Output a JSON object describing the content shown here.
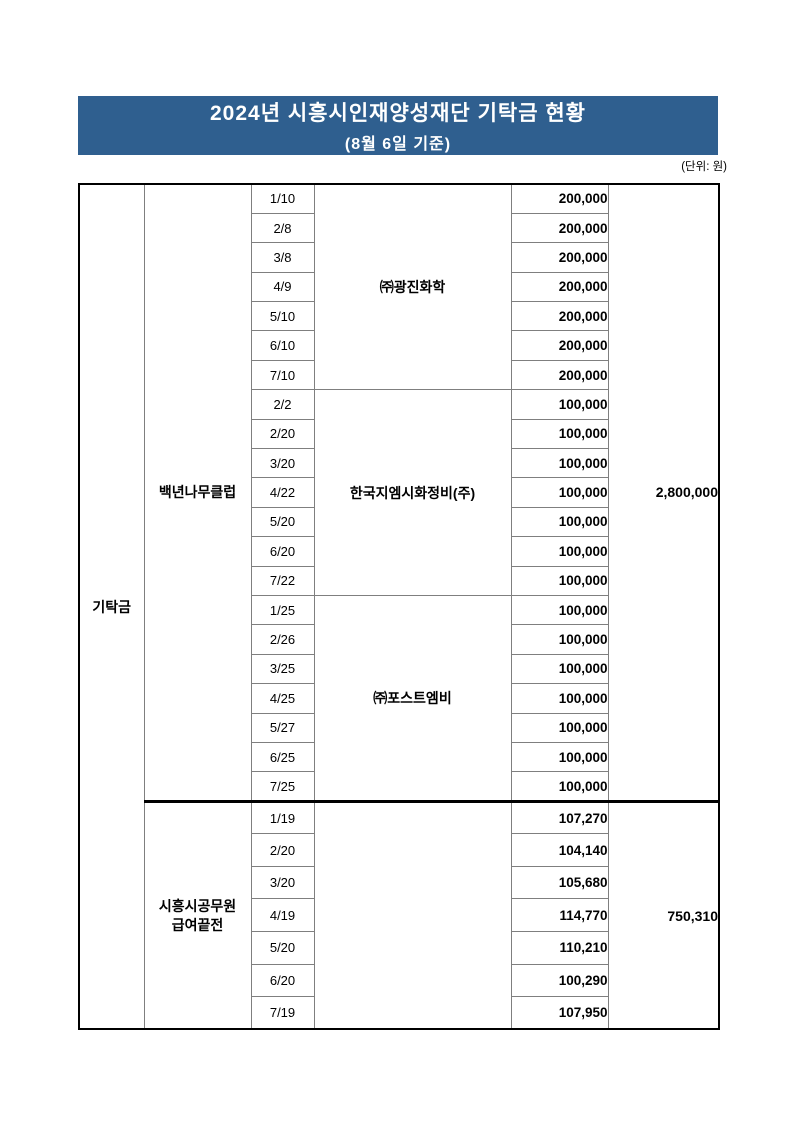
{
  "page": {
    "title_line1": "2024년  시흥시인재양성재단  기탁금  현황",
    "title_line2": "(8월 6일 기준)",
    "unit_note": "(단위: 원)"
  },
  "colors": {
    "banner_bg": "#2f5f8f",
    "banner_text": "#ffffff",
    "grid_line": "#7f7f7f",
    "outer_border": "#000000"
  },
  "table": {
    "category_label": "기탁금",
    "groups": [
      {
        "club_label": "백년나무클럽",
        "total": "2,800,000",
        "subgroups": [
          {
            "donor": "㈜광진화학",
            "entries": [
              {
                "date": "1/10",
                "amount": "200,000"
              },
              {
                "date": "2/8",
                "amount": "200,000"
              },
              {
                "date": "3/8",
                "amount": "200,000"
              },
              {
                "date": "4/9",
                "amount": "200,000"
              },
              {
                "date": "5/10",
                "amount": "200,000"
              },
              {
                "date": "6/10",
                "amount": "200,000"
              },
              {
                "date": "7/10",
                "amount": "200,000"
              }
            ]
          },
          {
            "donor": "한국지엠시화정비(주)",
            "entries": [
              {
                "date": "2/2",
                "amount": "100,000"
              },
              {
                "date": "2/20",
                "amount": "100,000"
              },
              {
                "date": "3/20",
                "amount": "100,000"
              },
              {
                "date": "4/22",
                "amount": "100,000"
              },
              {
                "date": "5/20",
                "amount": "100,000"
              },
              {
                "date": "6/20",
                "amount": "100,000"
              },
              {
                "date": "7/22",
                "amount": "100,000"
              }
            ]
          },
          {
            "donor": "㈜포스트엠비",
            "entries": [
              {
                "date": "1/25",
                "amount": "100,000"
              },
              {
                "date": "2/26",
                "amount": "100,000"
              },
              {
                "date": "3/25",
                "amount": "100,000"
              },
              {
                "date": "4/25",
                "amount": "100,000"
              },
              {
                "date": "5/27",
                "amount": "100,000"
              },
              {
                "date": "6/25",
                "amount": "100,000"
              },
              {
                "date": "7/25",
                "amount": "100,000"
              }
            ]
          }
        ]
      },
      {
        "club_label": "시흥시공무원\n급여끝전",
        "total": "750,310",
        "subgroups": [
          {
            "donor": "",
            "entries": [
              {
                "date": "1/19",
                "amount": "107,270"
              },
              {
                "date": "2/20",
                "amount": "104,140"
              },
              {
                "date": "3/20",
                "amount": "105,680"
              },
              {
                "date": "4/19",
                "amount": "114,770"
              },
              {
                "date": "5/20",
                "amount": "110,210"
              },
              {
                "date": "6/20",
                "amount": "100,290"
              },
              {
                "date": "7/19",
                "amount": "107,950"
              }
            ]
          }
        ]
      }
    ]
  }
}
